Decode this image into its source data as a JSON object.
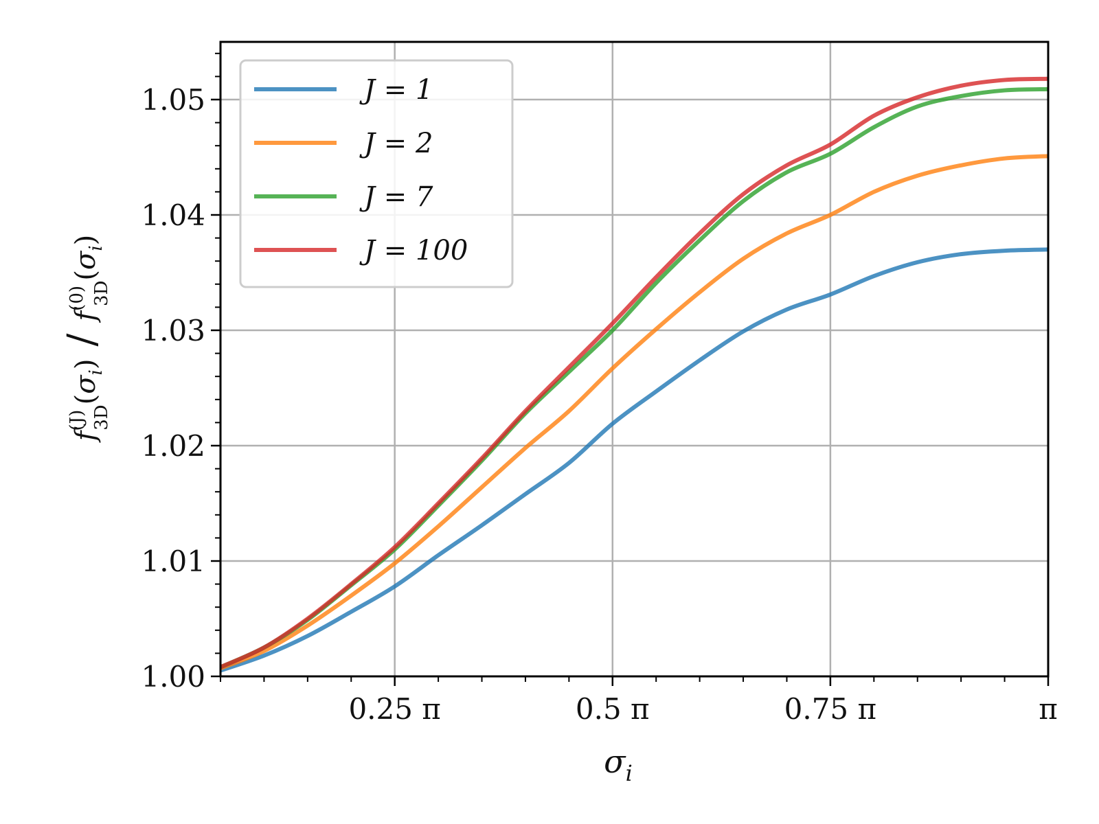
{
  "chart_data": {
    "type": "line",
    "xlabel": "σ_i",
    "ylabel": "f_3D^(J)(σ_i) / f_3D^(0)(σ_i)",
    "xlim_over_pi": [
      0.05,
      1.0
    ],
    "ylim": [
      1.0,
      1.055
    ],
    "grid": true,
    "legend_position": "upper-left",
    "x_ticks": [
      {
        "value_over_pi": 0.25,
        "label": "0.25 π"
      },
      {
        "value_over_pi": 0.5,
        "label": "0.5 π"
      },
      {
        "value_over_pi": 0.75,
        "label": "0.75 π"
      },
      {
        "value_over_pi": 1.0,
        "label": "π"
      }
    ],
    "y_ticks": [
      {
        "value": 1.0,
        "label": "1.00"
      },
      {
        "value": 1.01,
        "label": "1.01"
      },
      {
        "value": 1.02,
        "label": "1.02"
      },
      {
        "value": 1.03,
        "label": "1.03"
      },
      {
        "value": 1.04,
        "label": "1.04"
      },
      {
        "value": 1.05,
        "label": "1.05"
      }
    ],
    "x_over_pi": [
      0.05,
      0.1,
      0.15,
      0.2,
      0.25,
      0.3,
      0.35,
      0.4,
      0.45,
      0.5,
      0.55,
      0.6,
      0.65,
      0.7,
      0.75,
      0.8,
      0.85,
      0.9,
      0.95,
      1.0
    ],
    "series": [
      {
        "name": "J = 1",
        "color": "#1f77b4",
        "values": [
          1.0005,
          1.0018,
          1.0035,
          1.0056,
          1.0078,
          1.0105,
          1.0131,
          1.0158,
          1.0185,
          1.0219,
          1.0247,
          1.0274,
          1.0299,
          1.0318,
          1.0331,
          1.0347,
          1.0359,
          1.0366,
          1.0369,
          1.037
        ]
      },
      {
        "name": "J = 2",
        "color": "#ff7f0e",
        "values": [
          1.0007,
          1.0022,
          1.0044,
          1.007,
          1.0098,
          1.013,
          1.0164,
          1.0198,
          1.023,
          1.0267,
          1.0301,
          1.0333,
          1.0362,
          1.0384,
          1.04,
          1.042,
          1.0434,
          1.0443,
          1.0449,
          1.0451
        ]
      },
      {
        "name": "J = 7",
        "color": "#2ca02c",
        "values": [
          1.0008,
          1.0025,
          1.0049,
          1.0079,
          1.011,
          1.0148,
          1.0187,
          1.0228,
          1.0264,
          1.03,
          1.0341,
          1.0378,
          1.0412,
          1.0437,
          1.0453,
          1.0476,
          1.0494,
          1.0503,
          1.0508,
          1.0509
        ]
      },
      {
        "name": "J = 100",
        "color": "#d62728",
        "values": [
          1.0008,
          1.0025,
          1.005,
          1.008,
          1.0112,
          1.015,
          1.0189,
          1.023,
          1.0268,
          1.0306,
          1.0346,
          1.0384,
          1.0418,
          1.0443,
          1.0461,
          1.0486,
          1.0502,
          1.0512,
          1.0517,
          1.0518
        ]
      }
    ]
  }
}
